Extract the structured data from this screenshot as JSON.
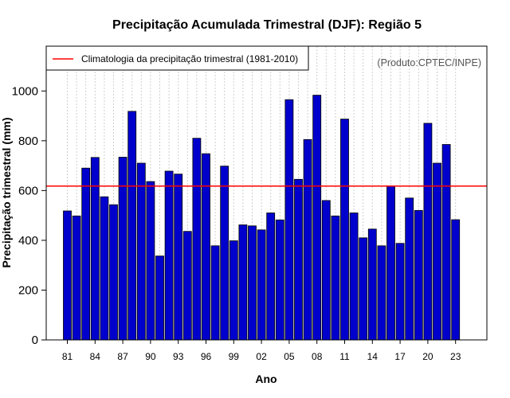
{
  "chart_data": {
    "type": "bar",
    "title": "Precipitação Acumulada Trimestral (DJF): Região 5",
    "xlabel": "Ano",
    "ylabel": "Precipitação trimestral (mm)",
    "ylim": [
      0,
      1180
    ],
    "yticks": [
      0,
      200,
      400,
      600,
      800,
      1000
    ],
    "xtick_labels": [
      "81",
      "84",
      "87",
      "90",
      "93",
      "96",
      "99",
      "02",
      "05",
      "08",
      "11",
      "14",
      "17",
      "20",
      "23"
    ],
    "categories": [
      "1981",
      "1982",
      "1983",
      "1984",
      "1985",
      "1986",
      "1987",
      "1988",
      "1989",
      "1990",
      "1991",
      "1992",
      "1993",
      "1994",
      "1995",
      "1996",
      "1997",
      "1998",
      "1999",
      "2000",
      "2001",
      "2002",
      "2003",
      "2004",
      "2005",
      "2006",
      "2007",
      "2008",
      "2009",
      "2010",
      "2011",
      "2012",
      "2013",
      "2014",
      "2015",
      "2016",
      "2017",
      "2018",
      "2019",
      "2020",
      "2021",
      "2022",
      "2023"
    ],
    "values": [
      518,
      498,
      690,
      733,
      575,
      543,
      734,
      918,
      710,
      636,
      337,
      678,
      666,
      436,
      810,
      748,
      378,
      698,
      398,
      462,
      458,
      442,
      510,
      482,
      965,
      645,
      805,
      983,
      560,
      498,
      887,
      510,
      410,
      445,
      378,
      618,
      388,
      570,
      520,
      870,
      710,
      785,
      483
    ],
    "bar_color": "#0000CD",
    "climatology": {
      "value": 618,
      "label": "Climatologia da precipitação trimestral (1981-2010)",
      "color": "#FF0000"
    },
    "legend_position": "top-left",
    "grid": "vertical dotted",
    "credit": "(Produto:CPTEC/INPE)"
  }
}
